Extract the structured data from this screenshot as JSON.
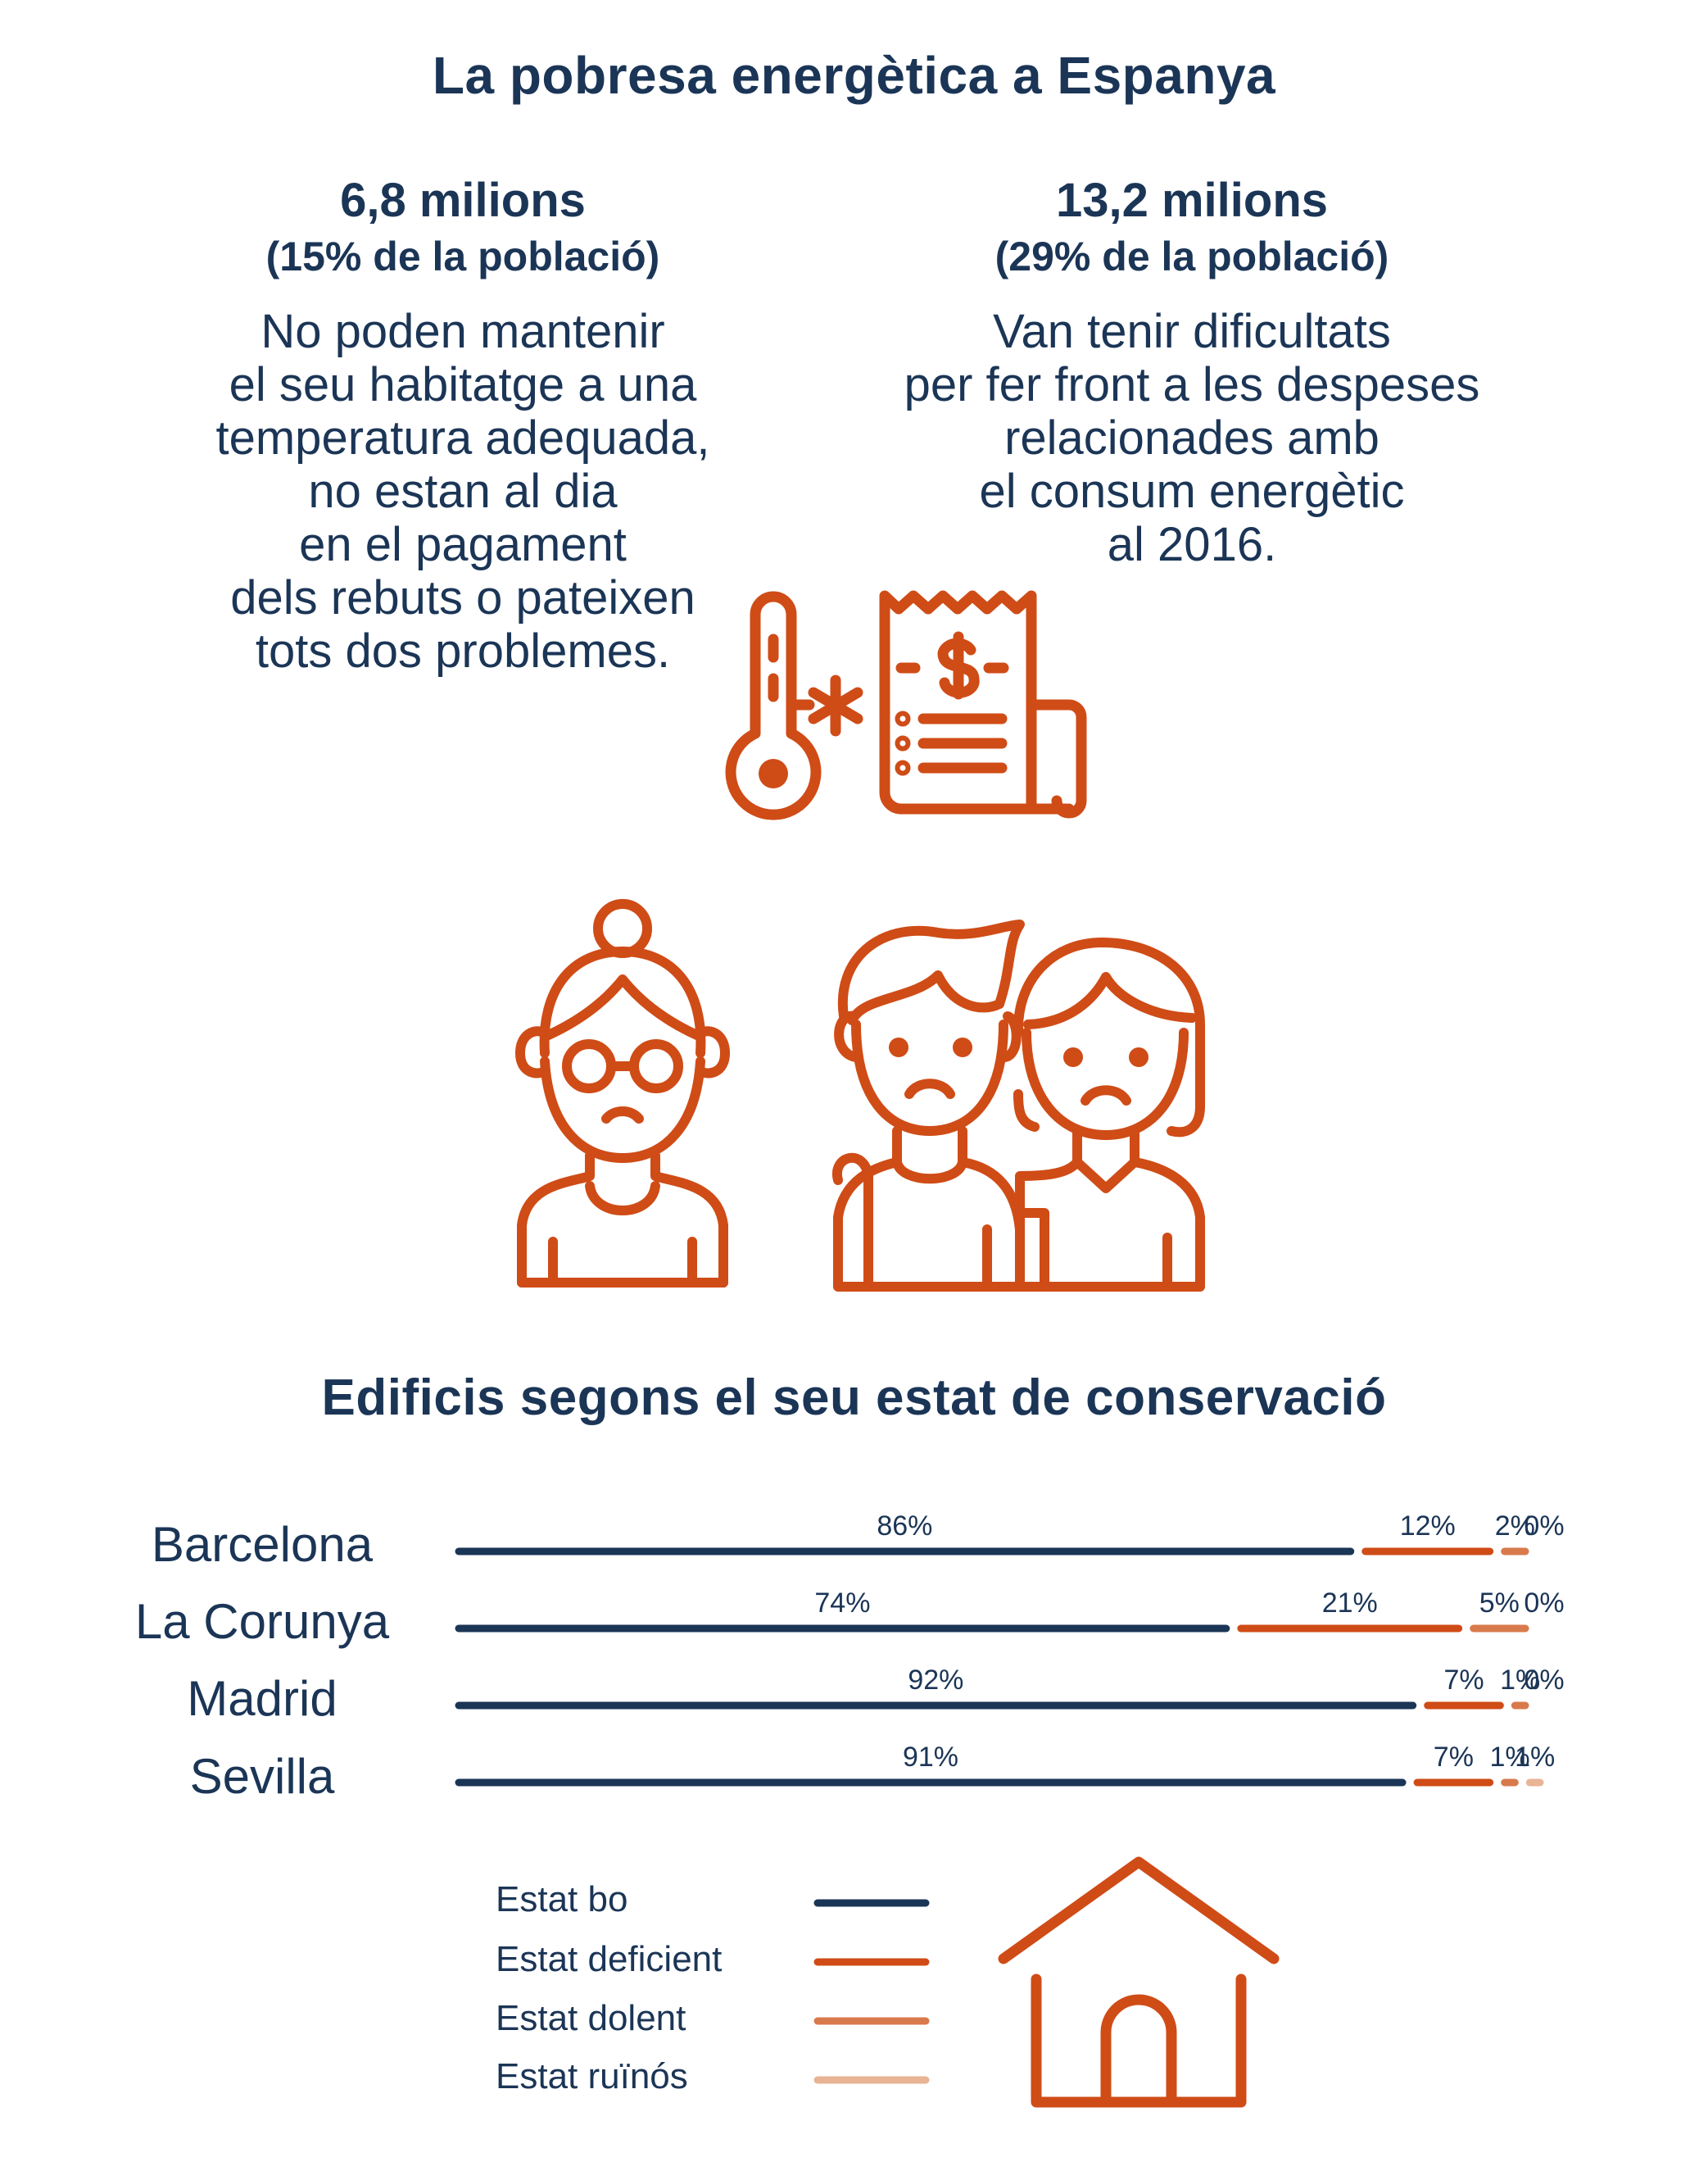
{
  "title": "La pobresa energètica a Espanya",
  "stats": [
    {
      "value": "6,8 milions",
      "share": "(15% de la població)",
      "description": "No poden mantenir\nel seu habitatge a una\ntemperatura adequada,\nno estan al dia\nen el pagament\ndels rebuts o pateixen\ntots dos problemes."
    },
    {
      "value": "13,2 milions",
      "share": "(29% de la població)",
      "description": "Van tenir dificultats\nper fer front a les despeses\nrelacionades amb\nel consum energètic\nal 2016."
    }
  ],
  "icons": {
    "thermometer": "thermometer-cold-icon",
    "bill": "invoice-dollar-icon",
    "elderly": "sad-elderly-woman-icon",
    "couple": "sad-couple-icon",
    "house": "house-icon"
  },
  "section_title": "Edificis segons el seu estat de conservació",
  "colors": {
    "navy": "#1b3556",
    "orange": "#cf4c17",
    "orange_light": "#d87a4c",
    "orange_pale": "#e9b396"
  },
  "chart_data": {
    "type": "bar",
    "stacked": true,
    "categories": [
      "Barcelona",
      "La Corunya",
      "Madrid",
      "Sevilla"
    ],
    "series": [
      {
        "name": "Estat bo",
        "values": [
          86,
          74,
          92,
          91
        ],
        "color": "#1b3556"
      },
      {
        "name": "Estat deficient",
        "values": [
          12,
          21,
          7,
          7
        ],
        "color": "#cf4c17"
      },
      {
        "name": "Estat dolent",
        "values": [
          2,
          5,
          1,
          1
        ],
        "color": "#d87a4c"
      },
      {
        "name": "Estat ruïnós",
        "values": [
          0,
          0,
          0,
          1
        ],
        "color": "#e9b396"
      }
    ],
    "data_labels": [
      [
        "86%",
        "12%",
        "2%",
        "0%"
      ],
      [
        "74%",
        "21%",
        "5%",
        "0%"
      ],
      [
        "92%",
        "7%",
        "1%",
        "0%"
      ],
      [
        "91%",
        "7%",
        "1%",
        "1%"
      ]
    ],
    "legend_position": "bottom"
  }
}
